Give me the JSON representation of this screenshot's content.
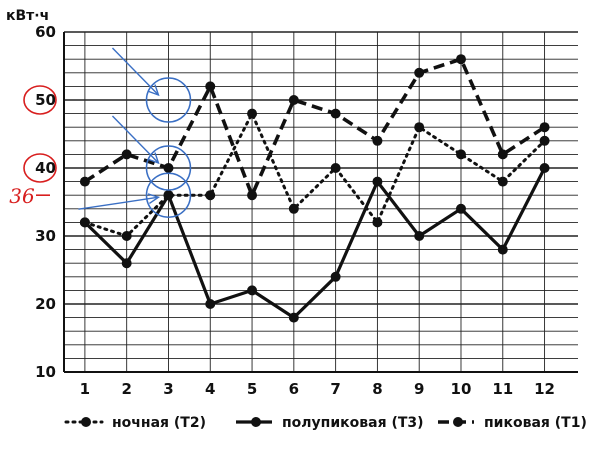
{
  "chart_data": {
    "type": "line",
    "ylabel": "кВт·ч",
    "xlabel": "",
    "x": [
      1,
      2,
      3,
      4,
      5,
      6,
      7,
      8,
      9,
      10,
      11,
      12
    ],
    "ylim": [
      10,
      60
    ],
    "y_ticks": [
      10,
      20,
      30,
      40,
      50,
      60
    ],
    "grid": true,
    "legend_position": "bottom",
    "series": [
      {
        "name": "ночная (Т2)",
        "style": "dotted",
        "values": [
          32,
          30,
          36,
          36,
          48,
          34,
          40,
          32,
          46,
          42,
          38,
          44
        ]
      },
      {
        "name": "полупиковая (Т3)",
        "style": "solid",
        "values": [
          32,
          26,
          36,
          20,
          22,
          18,
          24,
          38,
          30,
          34,
          28,
          40
        ]
      },
      {
        "name": "пиковая (Т1)",
        "style": "dashed",
        "values": [
          38,
          42,
          40,
          52,
          36,
          50,
          48,
          44,
          54,
          56,
          42,
          46
        ]
      }
    ],
    "annotations": {
      "circled_y_labels": [
        50,
        40
      ],
      "handwritten_label": "36",
      "handwritten_value": 36,
      "circled_points": [
        {
          "x": 3,
          "y": 50
        },
        {
          "x": 3,
          "y": 40
        },
        {
          "x": 3,
          "y": 36
        }
      ],
      "red_color": "#d81e1e",
      "blue_color": "#3a6fc4"
    }
  }
}
